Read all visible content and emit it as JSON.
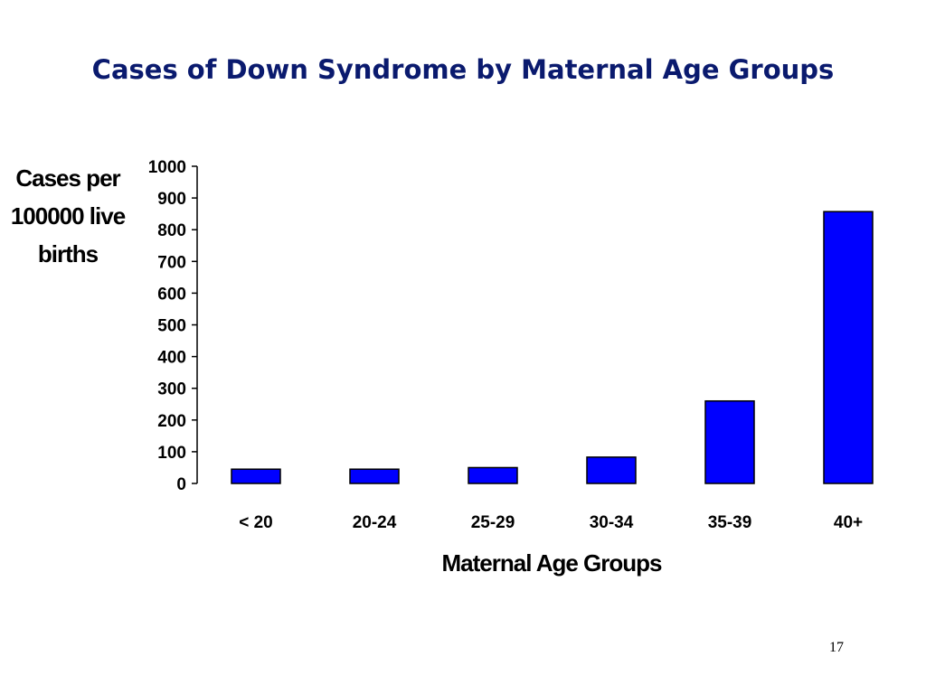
{
  "slide": {
    "title": "Cases of Down Syndrome by Maternal Age Groups",
    "page_number": "17"
  },
  "chart_data": {
    "type": "bar",
    "title": "Cases of Down Syndrome by Maternal Age Groups",
    "xlabel": "Maternal Age Groups",
    "ylabel": "Cases per 100000 live births",
    "categories": [
      "< 20",
      "20-24",
      "25-29",
      "30-34",
      "35-39",
      "40+"
    ],
    "values": [
      45,
      45,
      50,
      83,
      260,
      857
    ],
    "ylim": [
      0,
      1000
    ],
    "yticks": [
      0,
      100,
      200,
      300,
      400,
      500,
      600,
      700,
      800,
      900,
      1000
    ],
    "grid": false,
    "legend": "none",
    "bar_color": "#0000ff",
    "bar_edge_color": "#000000"
  }
}
